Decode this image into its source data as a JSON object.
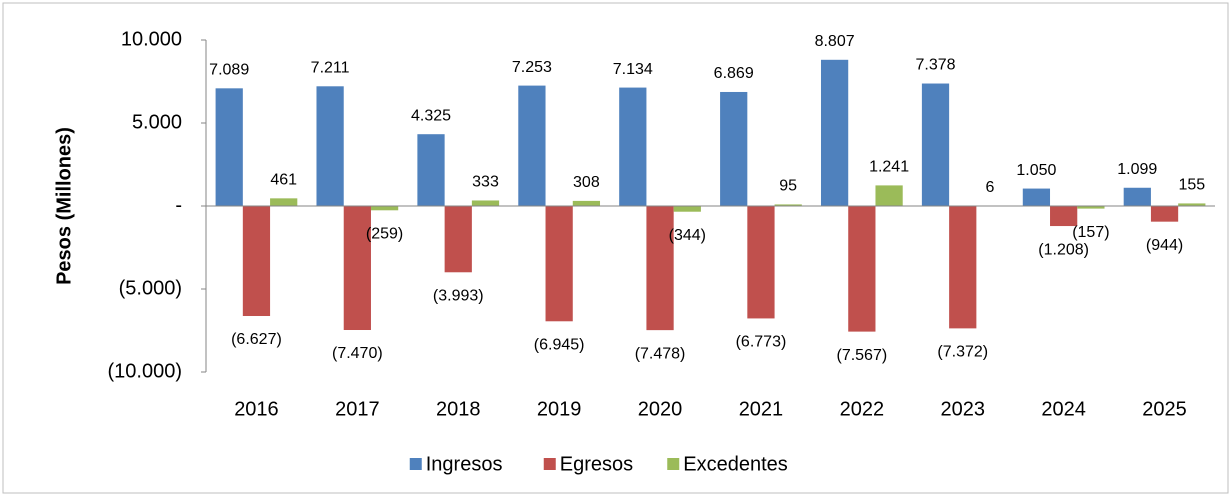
{
  "chart_data": {
    "type": "bar",
    "y_label": "Pesos (Millones)",
    "categories": [
      "2016",
      "2017",
      "2018",
      "2019",
      "2020",
      "2021",
      "2022",
      "2023",
      "2024",
      "2025"
    ],
    "series": [
      {
        "name": "Ingresos",
        "color": "#4f81bd",
        "values": [
          7089,
          7211,
          4325,
          7253,
          7134,
          6869,
          8807,
          7378,
          1050,
          1099
        ],
        "value_labels": [
          "7.089",
          "7.211",
          "4.325",
          "7.253",
          "7.134",
          "6.869",
          "8.807",
          "7.378",
          "1.050",
          "1.099"
        ]
      },
      {
        "name": "Egresos",
        "color": "#c0504d",
        "values": [
          -6627,
          -7470,
          -3993,
          -6945,
          -7478,
          -6773,
          -7567,
          -7372,
          -1208,
          -944
        ],
        "value_labels": [
          "(6.627)",
          "(7.470)",
          "(3.993)",
          "(6.945)",
          "(7.478)",
          "(6.773)",
          "(7.567)",
          "(7.372)",
          "(1.208)",
          "(944)"
        ]
      },
      {
        "name": "Excedentes",
        "color": "#9bbb59",
        "values": [
          461,
          -259,
          333,
          308,
          -344,
          95,
          1241,
          6,
          -157,
          155
        ],
        "value_labels": [
          "461",
          "(259)",
          "333",
          "308",
          "(344)",
          "95",
          "1.241",
          "6",
          "(157)",
          "155"
        ]
      }
    ],
    "ylim": [
      -10000,
      10000
    ],
    "yticks": [
      {
        "value": 10000,
        "label": "10.000"
      },
      {
        "value": 5000,
        "label": "5.000"
      },
      {
        "value": 0,
        "label": "-"
      },
      {
        "value": -5000,
        "label": "(5.000)"
      },
      {
        "value": -10000,
        "label": "(10.000)"
      }
    ],
    "legend": "bottom"
  }
}
